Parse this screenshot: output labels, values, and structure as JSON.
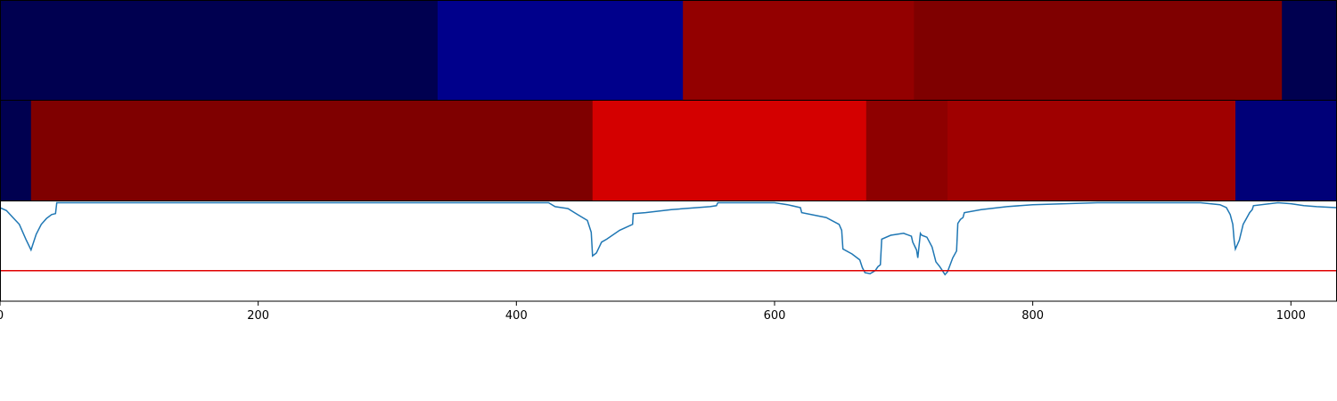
{
  "chart_data": [
    {
      "type": "heatmap",
      "panel": "top-band",
      "xlim": [
        0,
        1035
      ],
      "segments": [
        {
          "start": 0,
          "end": 339,
          "color": "#000050"
        },
        {
          "start": 339,
          "end": 529,
          "color": "#00008b"
        },
        {
          "start": 529,
          "end": 708,
          "color": "#930000"
        },
        {
          "start": 708,
          "end": 993,
          "color": "#7f0000"
        },
        {
          "start": 993,
          "end": 1035,
          "color": "#000050"
        }
      ]
    },
    {
      "type": "heatmap",
      "panel": "middle-band",
      "xlim": [
        0,
        1035
      ],
      "segments": [
        {
          "start": 0,
          "end": 24,
          "color": "#000050"
        },
        {
          "start": 24,
          "end": 459,
          "color": "#7f0000"
        },
        {
          "start": 459,
          "end": 671,
          "color": "#d40000"
        },
        {
          "start": 671,
          "end": 734,
          "color": "#8e0000"
        },
        {
          "start": 734,
          "end": 957,
          "color": "#9f0000"
        },
        {
          "start": 957,
          "end": 1035,
          "color": "#000078"
        }
      ]
    },
    {
      "type": "line",
      "panel": "bottom-line",
      "xlim": [
        0,
        1035
      ],
      "ylim": [
        0,
        1
      ],
      "threshold": 0.31,
      "threshold_color": "#e00000",
      "line_color": "#1f77b4",
      "x_ticks": [
        0,
        200,
        400,
        600,
        800,
        1000
      ],
      "x_tick_labels": [
        "0",
        "200",
        "400",
        "600",
        "800",
        "1000"
      ],
      "x": [
        0,
        5,
        10,
        15,
        20,
        24,
        28,
        32,
        36,
        40,
        43,
        44,
        60,
        100,
        200,
        300,
        400,
        425,
        430,
        440,
        445,
        450,
        455,
        458,
        459,
        462,
        466,
        470,
        480,
        490,
        490.5,
        500,
        520,
        550,
        555,
        556,
        600,
        610,
        620,
        621,
        640,
        650,
        652,
        653,
        660,
        666,
        668,
        670,
        674,
        678,
        680,
        682,
        683,
        690,
        700,
        706,
        707,
        710,
        711,
        713,
        714,
        718,
        722,
        725,
        728,
        732,
        734,
        736,
        738,
        741,
        742,
        744,
        746,
        747,
        760,
        780,
        800,
        850,
        900,
        930,
        945,
        950,
        953,
        955,
        956,
        957,
        960,
        963,
        968,
        970,
        971,
        990,
        1000,
        1010,
        1020,
        1035
      ],
      "y": [
        0.95,
        0.92,
        0.85,
        0.78,
        0.63,
        0.52,
        0.68,
        0.78,
        0.84,
        0.88,
        0.89,
        1.0,
        1.0,
        1.0,
        1.0,
        1.0,
        1.0,
        1.0,
        0.96,
        0.94,
        0.9,
        0.86,
        0.82,
        0.7,
        0.46,
        0.49,
        0.6,
        0.63,
        0.72,
        0.78,
        0.89,
        0.9,
        0.93,
        0.96,
        0.97,
        1.0,
        1.0,
        0.98,
        0.95,
        0.9,
        0.85,
        0.78,
        0.72,
        0.53,
        0.48,
        0.42,
        0.34,
        0.29,
        0.28,
        0.31,
        0.35,
        0.37,
        0.63,
        0.67,
        0.69,
        0.66,
        0.6,
        0.52,
        0.44,
        0.69,
        0.67,
        0.65,
        0.55,
        0.4,
        0.35,
        0.27,
        0.3,
        0.37,
        0.44,
        0.51,
        0.79,
        0.83,
        0.85,
        0.9,
        0.93,
        0.96,
        0.98,
        1.0,
        1.0,
        1.0,
        0.98,
        0.95,
        0.88,
        0.78,
        0.62,
        0.53,
        0.62,
        0.78,
        0.9,
        0.93,
        0.97,
        1.0,
        0.99,
        0.97,
        0.96,
        0.95
      ]
    }
  ]
}
